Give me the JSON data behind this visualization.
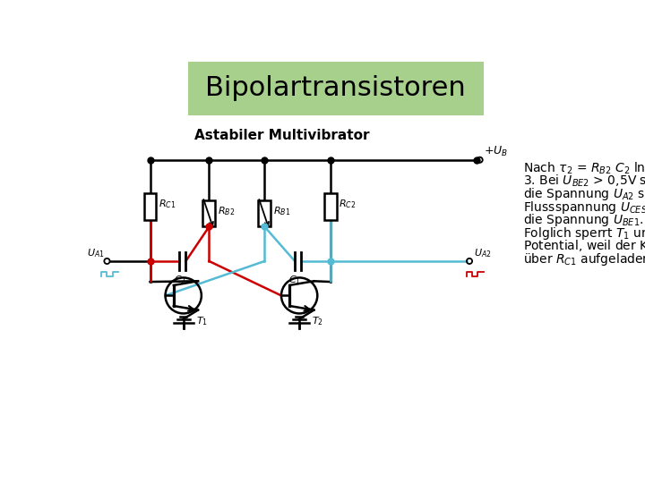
{
  "title": "Bipolartransistoren",
  "title_bg": "#a8d08d",
  "subtitle": "Astabiler Multivibrator",
  "bg_color": "#ffffff",
  "font_size_title": 22,
  "font_size_subtitle": 11,
  "font_size_body": 10,
  "font_size_circuit": 8,
  "red": "#cc0000",
  "blue": "#55bbd4",
  "black": "#000000"
}
